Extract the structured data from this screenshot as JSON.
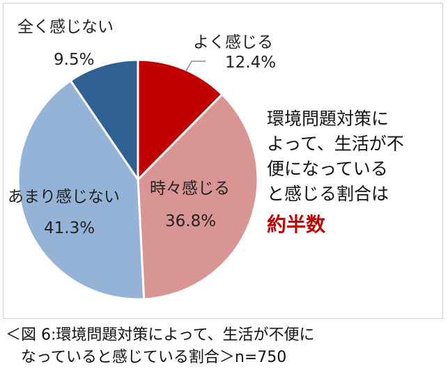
{
  "chart_data": {
    "type": "pie",
    "slices": [
      {
        "label": "よく感じる",
        "value": 12.4,
        "value_label": "12.4%",
        "color": "#c00000"
      },
      {
        "label": "時々感じる",
        "value": 36.8,
        "value_label": "36.8%",
        "color": "#d99594"
      },
      {
        "label": "あまり感じない",
        "value": 41.3,
        "value_label": "41.3%",
        "color": "#95b3d7"
      },
      {
        "label": "全く感じない",
        "value": 9.5,
        "value_label": "9.5%",
        "color": "#2f5f93"
      }
    ]
  },
  "note": {
    "lines": [
      "環境問題対策に",
      "よって、生活が不",
      "便になっている",
      "と感じる割合は"
    ],
    "highlight": "約半数"
  },
  "caption": {
    "line1": "＜図 6:環境問題対策によって、生活が不便に",
    "line2": "なっていると感じている割合＞n=750"
  }
}
